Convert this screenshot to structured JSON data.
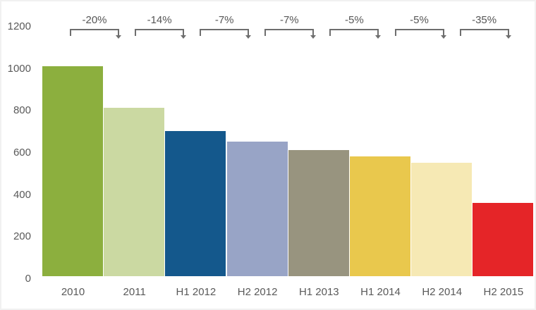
{
  "chart_data": {
    "type": "bar",
    "title": "",
    "xlabel": "",
    "ylabel": "",
    "categories": [
      "2010",
      "2011",
      "H1 2012",
      "H2 2012",
      "H1 2013",
      "H1 2014",
      "H2 2014",
      "H2 2015"
    ],
    "values": [
      1000,
      800,
      690,
      640,
      600,
      570,
      540,
      350
    ],
    "bar_colors": [
      "#8caf3e",
      "#cbd9a2",
      "#14588c",
      "#98a4c6",
      "#98947f",
      "#e9c84d",
      "#f6e9b4",
      "#e52528"
    ],
    "change_labels": [
      "-20%",
      "-14%",
      "-7%",
      "-7%",
      "-5%",
      "-5%",
      "-35%"
    ],
    "ylim": [
      0,
      1200
    ],
    "yticks": [
      0,
      200,
      400,
      600,
      800,
      1000,
      1200
    ],
    "grid": false,
    "legend": "none",
    "colors": {
      "axis_text": "#595959",
      "bracket_line": "#6e6e6e",
      "background": "#ffffff"
    }
  }
}
